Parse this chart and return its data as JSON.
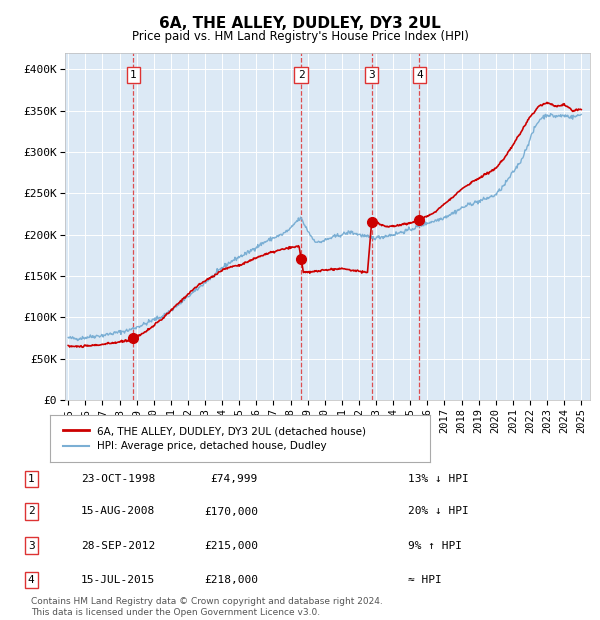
{
  "title": "6A, THE ALLEY, DUDLEY, DY3 2UL",
  "subtitle": "Price paid vs. HM Land Registry's House Price Index (HPI)",
  "plot_bg": "#dce9f5",
  "fig_bg": "#ffffff",
  "sale_color": "#cc0000",
  "hpi_color": "#7bafd4",
  "sale_label": "6A, THE ALLEY, DUDLEY, DY3 2UL (detached house)",
  "hpi_label": "HPI: Average price, detached house, Dudley",
  "sales": [
    {
      "date_num": 1998.81,
      "price": 74999,
      "label": "1"
    },
    {
      "date_num": 2008.62,
      "price": 170000,
      "label": "2"
    },
    {
      "date_num": 2012.74,
      "price": 215000,
      "label": "3"
    },
    {
      "date_num": 2015.54,
      "price": 218000,
      "label": "4"
    }
  ],
  "sale_vlines": [
    1998.81,
    2008.62,
    2012.74,
    2015.54
  ],
  "table_rows": [
    [
      "1",
      "23-OCT-1998",
      "£74,999",
      "13% ↓ HPI"
    ],
    [
      "2",
      "15-AUG-2008",
      "£170,000",
      "20% ↓ HPI"
    ],
    [
      "3",
      "28-SEP-2012",
      "£215,000",
      "9% ↑ HPI"
    ],
    [
      "4",
      "15-JUL-2015",
      "£218,000",
      "≈ HPI"
    ]
  ],
  "footer": "Contains HM Land Registry data © Crown copyright and database right 2024.\nThis data is licensed under the Open Government Licence v3.0.",
  "ylim": [
    0,
    420000
  ],
  "xlim_left": 1994.8,
  "xlim_right": 2025.5,
  "yticks": [
    0,
    50000,
    100000,
    150000,
    200000,
    250000,
    300000,
    350000,
    400000
  ],
  "ytick_labels": [
    "£0",
    "£50K",
    "£100K",
    "£150K",
    "£200K",
    "£250K",
    "£300K",
    "£350K",
    "£400K"
  ],
  "xticks": [
    1995,
    1996,
    1997,
    1998,
    1999,
    2000,
    2001,
    2002,
    2003,
    2004,
    2005,
    2006,
    2007,
    2008,
    2009,
    2010,
    2011,
    2012,
    2013,
    2014,
    2015,
    2016,
    2017,
    2018,
    2019,
    2020,
    2021,
    2022,
    2023,
    2024,
    2025
  ]
}
